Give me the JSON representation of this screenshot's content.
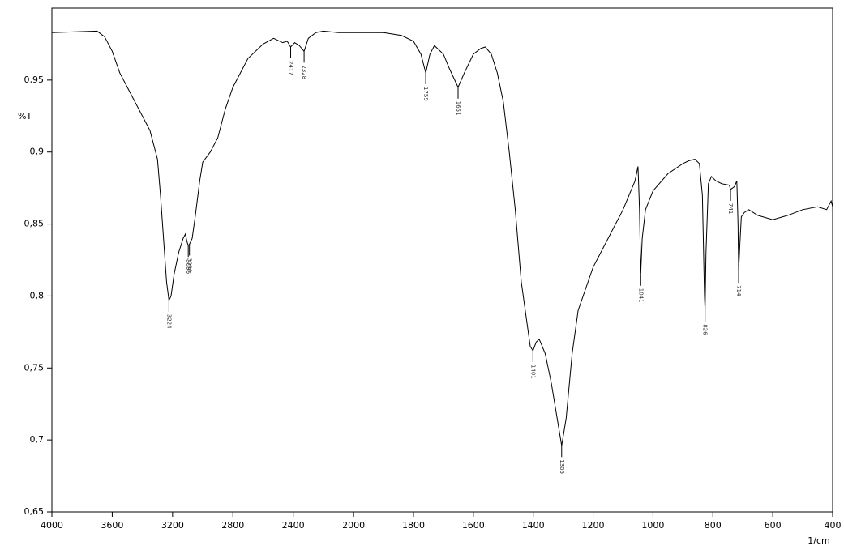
{
  "chart_data": {
    "type": "line",
    "y_label": "%T",
    "x_label": "1/cm",
    "xlim": [
      4000,
      400
    ],
    "x_scale_break": 2000,
    "xticks": [
      4000,
      3600,
      3200,
      2800,
      2400,
      2000,
      1800,
      1600,
      1400,
      1200,
      1000,
      800,
      600,
      400
    ],
    "ylim": [
      0.65,
      1.0
    ],
    "yticks": [
      {
        "value": 0.65,
        "label": "0,65"
      },
      {
        "value": 0.7,
        "label": "0,7"
      },
      {
        "value": 0.75,
        "label": "0,75"
      },
      {
        "value": 0.8,
        "label": "0,8"
      },
      {
        "value": 0.85,
        "label": "0,85"
      },
      {
        "value": 0.9,
        "label": "0,9"
      },
      {
        "value": 0.95,
        "label": "0,95"
      }
    ],
    "color": "#000000",
    "x": [
      4000,
      3700,
      3650,
      3600,
      3550,
      3500,
      3450,
      3400,
      3350,
      3300,
      3280,
      3260,
      3240,
      3224,
      3210,
      3190,
      3160,
      3130,
      3115,
      3105,
      3096,
      3088,
      3070,
      3050,
      3020,
      3000,
      2950,
      2900,
      2850,
      2800,
      2700,
      2600,
      2530,
      2470,
      2440,
      2417,
      2390,
      2360,
      2328,
      2300,
      2250,
      2200,
      2100,
      2000,
      1900,
      1840,
      1800,
      1775,
      1759,
      1745,
      1730,
      1700,
      1680,
      1651,
      1630,
      1600,
      1575,
      1560,
      1540,
      1520,
      1500,
      1480,
      1460,
      1440,
      1420,
      1410,
      1401,
      1390,
      1380,
      1360,
      1340,
      1320,
      1305,
      1290,
      1270,
      1250,
      1200,
      1150,
      1100,
      1060,
      1050,
      1045,
      1041,
      1036,
      1025,
      1000,
      950,
      900,
      880,
      860,
      845,
      835,
      828,
      826,
      823,
      815,
      805,
      790,
      770,
      745,
      741,
      728,
      720,
      716,
      714,
      710,
      705,
      695,
      680,
      650,
      600,
      550,
      500,
      450,
      420,
      405,
      400
    ],
    "values": [
      0.983,
      0.984,
      0.98,
      0.97,
      0.955,
      0.945,
      0.935,
      0.925,
      0.915,
      0.895,
      0.87,
      0.84,
      0.81,
      0.797,
      0.8,
      0.815,
      0.83,
      0.84,
      0.843,
      0.838,
      0.835,
      0.836,
      0.84,
      0.855,
      0.88,
      0.893,
      0.9,
      0.91,
      0.93,
      0.945,
      0.965,
      0.975,
      0.979,
      0.976,
      0.977,
      0.973,
      0.976,
      0.974,
      0.97,
      0.979,
      0.983,
      0.984,
      0.983,
      0.983,
      0.983,
      0.981,
      0.977,
      0.968,
      0.955,
      0.968,
      0.974,
      0.968,
      0.958,
      0.945,
      0.955,
      0.968,
      0.972,
      0.973,
      0.968,
      0.955,
      0.935,
      0.9,
      0.86,
      0.81,
      0.78,
      0.765,
      0.762,
      0.768,
      0.77,
      0.76,
      0.74,
      0.715,
      0.696,
      0.715,
      0.76,
      0.79,
      0.82,
      0.84,
      0.86,
      0.88,
      0.89,
      0.86,
      0.815,
      0.84,
      0.86,
      0.873,
      0.885,
      0.892,
      0.894,
      0.895,
      0.892,
      0.87,
      0.8,
      0.79,
      0.83,
      0.878,
      0.883,
      0.88,
      0.878,
      0.877,
      0.874,
      0.876,
      0.88,
      0.85,
      0.817,
      0.835,
      0.855,
      0.858,
      0.86,
      0.856,
      0.853,
      0.856,
      0.86,
      0.862,
      0.86,
      0.866,
      0.862
    ],
    "peaks": [
      {
        "x": 3224,
        "y": 0.797
      },
      {
        "x": 3096,
        "y": 0.835
      },
      {
        "x": 3088,
        "y": 0.836
      },
      {
        "x": 2417,
        "y": 0.973
      },
      {
        "x": 2328,
        "y": 0.97
      },
      {
        "x": 1759,
        "y": 0.955
      },
      {
        "x": 1651,
        "y": 0.945
      },
      {
        "x": 1401,
        "y": 0.762
      },
      {
        "x": 1305,
        "y": 0.696
      },
      {
        "x": 1041,
        "y": 0.815
      },
      {
        "x": 826,
        "y": 0.79
      },
      {
        "x": 741,
        "y": 0.874
      },
      {
        "x": 714,
        "y": 0.817
      }
    ]
  }
}
